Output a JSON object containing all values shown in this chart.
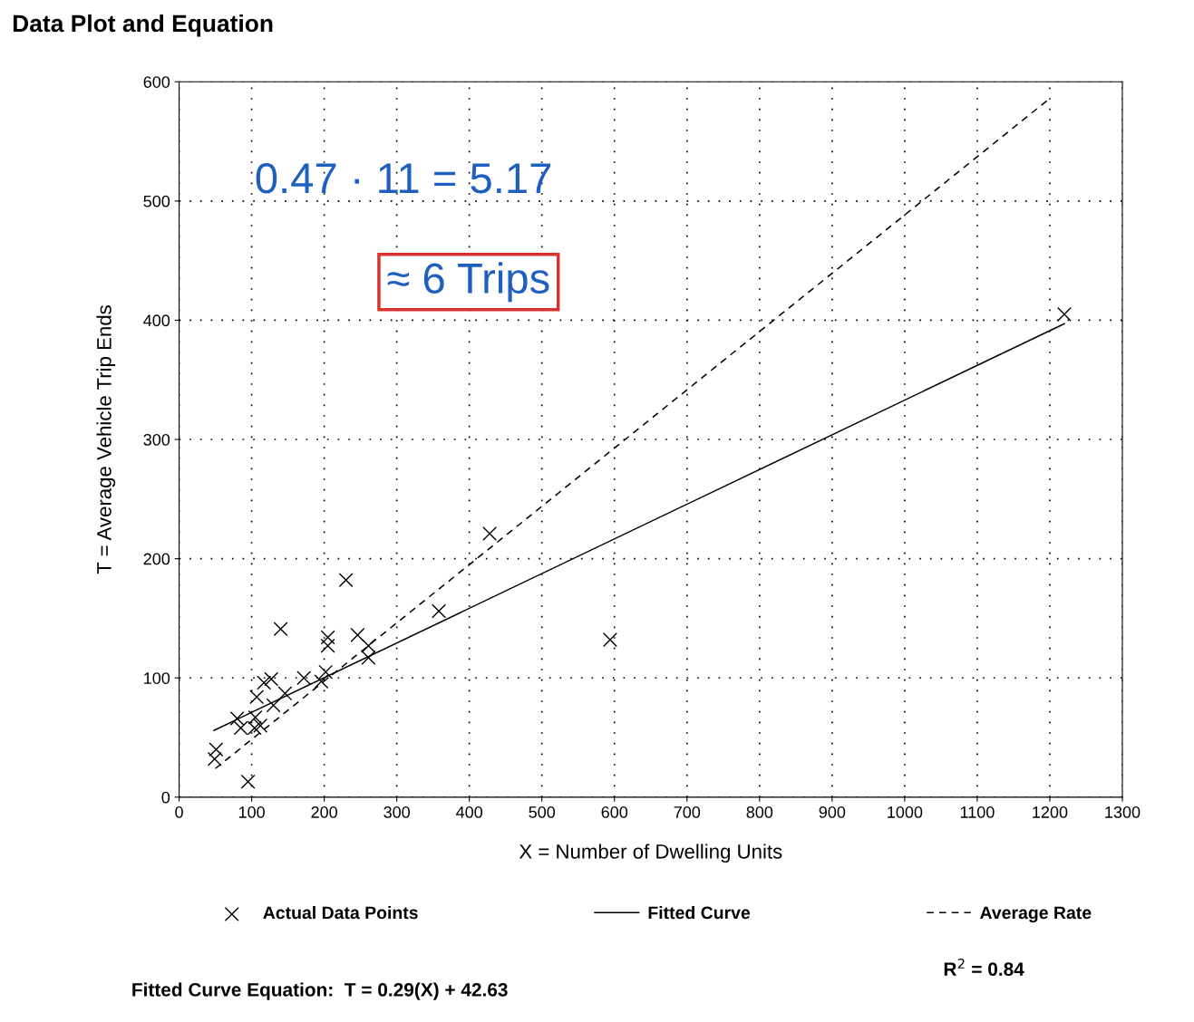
{
  "chart_data": {
    "type": "scatter",
    "title": "Data Plot and Equation",
    "xlabel": "X = Number of Dwelling Units",
    "ylabel": "T = Average Vehicle Trip Ends",
    "xlim": [
      0,
      1300
    ],
    "xticks": [
      0,
      100,
      200,
      300,
      400,
      500,
      600,
      700,
      800,
      900,
      1000,
      1100,
      1200,
      1300
    ],
    "ylim": [
      0,
      600
    ],
    "yticks": [
      0,
      100,
      200,
      300,
      400,
      500,
      600
    ],
    "grid": true,
    "legend": "bottom",
    "series": [
      {
        "name": "Actual Data Points",
        "marker": "cross",
        "color": "#000000",
        "x": [
          51,
          49,
          95,
          80,
          85,
          105,
          104,
          112,
          107,
          117,
          127,
          130,
          146,
          140,
          172,
          196,
          202,
          205,
          205,
          230,
          246,
          261,
          261,
          358,
          428,
          594,
          1220
        ],
        "values": [
          40,
          32,
          13,
          66,
          58,
          67,
          58,
          60,
          84,
          96,
          99,
          77,
          87,
          141,
          100,
          97,
          105,
          134,
          127,
          182,
          136,
          127,
          117,
          156,
          221,
          132,
          405
        ]
      },
      {
        "name": "Fitted Curve",
        "type": "line",
        "line_style": "solid",
        "color": "#000000",
        "x": [
          48,
          1220
        ],
        "values": [
          56,
          397
        ]
      },
      {
        "name": "Average Rate",
        "type": "line",
        "line_style": "dashed",
        "color": "#000000",
        "x": [
          50,
          1200
        ],
        "values": [
          24,
          586
        ]
      }
    ],
    "annotations": [
      "Fitted Curve Equation:  T = 0.29(X) + 42.63",
      "R$^{2}$ = 0.84",
      "0.47 · 11 = 5.17",
      "≈ 6 Trips"
    ]
  }
}
